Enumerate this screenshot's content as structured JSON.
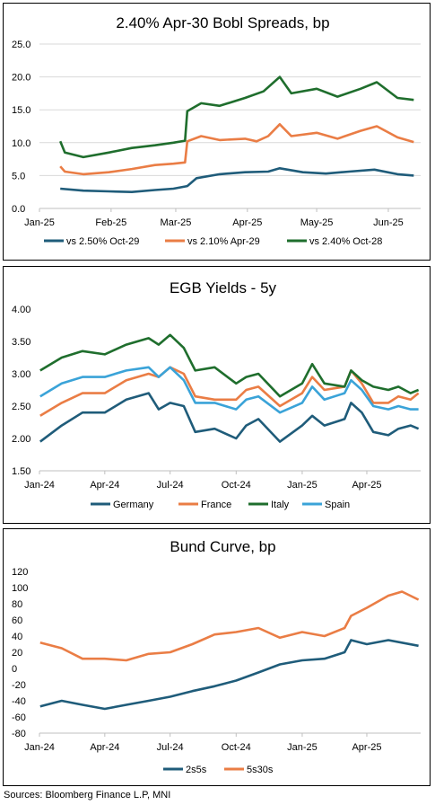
{
  "source_note": "Sources: Bloomberg Finance L.P, MNI",
  "colors": {
    "navy": "#1f5c7a",
    "orange": "#ea7d45",
    "green": "#1f6e2d",
    "light_blue": "#3aa3d8",
    "grid": "#d9d9d9",
    "axis": "#bfbfbf"
  },
  "chart_data": [
    {
      "type": "line",
      "title": "2.40% Apr-30 Bobl Spreads, bp",
      "xlabel": "",
      "ylabel": "",
      "ylim": [
        0,
        25
      ],
      "yticks": [
        "0.0",
        "5.0",
        "10.0",
        "15.0",
        "20.0",
        "25.0"
      ],
      "xlim": [
        "2025-01-01",
        "2025-06-15"
      ],
      "xticks": [
        {
          "date": "2025-01-01",
          "label": "Jan-25"
        },
        {
          "date": "2025-02-01",
          "label": "Feb-25"
        },
        {
          "date": "2025-03-01",
          "label": "Mar-25"
        },
        {
          "date": "2025-04-01",
          "label": "Apr-25"
        },
        {
          "date": "2025-05-01",
          "label": "May-25"
        },
        {
          "date": "2025-06-01",
          "label": "Jun-25"
        }
      ],
      "grid": true,
      "legend_position": "bottom",
      "series": [
        {
          "name": "vs 2.50% Oct-29",
          "color": "#1f5c7a",
          "points": [
            [
              "2025-01-10",
              3.0
            ],
            [
              "2025-01-20",
              2.7
            ],
            [
              "2025-01-31",
              2.6
            ],
            [
              "2025-02-10",
              2.5
            ],
            [
              "2025-02-20",
              2.8
            ],
            [
              "2025-02-28",
              3.0
            ],
            [
              "2025-03-06",
              3.4
            ],
            [
              "2025-03-10",
              4.6
            ],
            [
              "2025-03-20",
              5.2
            ],
            [
              "2025-03-31",
              5.5
            ],
            [
              "2025-04-10",
              5.6
            ],
            [
              "2025-04-15",
              6.1
            ],
            [
              "2025-04-25",
              5.5
            ],
            [
              "2025-05-05",
              5.3
            ],
            [
              "2025-05-15",
              5.6
            ],
            [
              "2025-05-26",
              5.9
            ],
            [
              "2025-06-05",
              5.2
            ],
            [
              "2025-06-12",
              5.0
            ]
          ]
        },
        {
          "name": "vs 2.10% Apr-29",
          "color": "#ea7d45",
          "points": [
            [
              "2025-01-10",
              6.4
            ],
            [
              "2025-01-12",
              5.6
            ],
            [
              "2025-01-20",
              5.2
            ],
            [
              "2025-01-31",
              5.5
            ],
            [
              "2025-02-10",
              6.0
            ],
            [
              "2025-02-20",
              6.6
            ],
            [
              "2025-02-28",
              6.8
            ],
            [
              "2025-03-05",
              7.0
            ],
            [
              "2025-03-06",
              10.2
            ],
            [
              "2025-03-12",
              11.0
            ],
            [
              "2025-03-20",
              10.4
            ],
            [
              "2025-03-31",
              10.6
            ],
            [
              "2025-04-05",
              10.2
            ],
            [
              "2025-04-10",
              11.0
            ],
            [
              "2025-04-15",
              12.8
            ],
            [
              "2025-04-20",
              11.0
            ],
            [
              "2025-05-01",
              11.5
            ],
            [
              "2025-05-10",
              10.6
            ],
            [
              "2025-05-20",
              11.8
            ],
            [
              "2025-05-27",
              12.5
            ],
            [
              "2025-06-05",
              10.8
            ],
            [
              "2025-06-12",
              10.1
            ]
          ]
        },
        {
          "name": "vs 2.40% Oct-28",
          "color": "#1f6e2d",
          "points": [
            [
              "2025-01-10",
              10.2
            ],
            [
              "2025-01-12",
              8.5
            ],
            [
              "2025-01-20",
              7.8
            ],
            [
              "2025-01-31",
              8.5
            ],
            [
              "2025-02-10",
              9.2
            ],
            [
              "2025-02-20",
              9.6
            ],
            [
              "2025-02-28",
              10.0
            ],
            [
              "2025-03-05",
              10.3
            ],
            [
              "2025-03-06",
              14.8
            ],
            [
              "2025-03-12",
              16.0
            ],
            [
              "2025-03-20",
              15.6
            ],
            [
              "2025-03-31",
              16.8
            ],
            [
              "2025-04-08",
              17.8
            ],
            [
              "2025-04-15",
              20.0
            ],
            [
              "2025-04-20",
              17.5
            ],
            [
              "2025-05-01",
              18.2
            ],
            [
              "2025-05-10",
              17.0
            ],
            [
              "2025-05-20",
              18.2
            ],
            [
              "2025-05-27",
              19.2
            ],
            [
              "2025-06-05",
              16.8
            ],
            [
              "2025-06-12",
              16.5
            ]
          ]
        }
      ]
    },
    {
      "type": "line",
      "title": "EGB Yields - 5y",
      "xlabel": "",
      "ylabel": "",
      "ylim": [
        1.5,
        4.0
      ],
      "yticks": [
        "1.50",
        "2.00",
        "2.50",
        "3.00",
        "3.50",
        "4.00"
      ],
      "xlim": [
        "2024-01-01",
        "2025-06-15"
      ],
      "xticks": [
        {
          "date": "2024-01-01",
          "label": "Jan-24"
        },
        {
          "date": "2024-04-01",
          "label": "Apr-24"
        },
        {
          "date": "2024-07-01",
          "label": "Jul-24"
        },
        {
          "date": "2024-10-01",
          "label": "Oct-24"
        },
        {
          "date": "2025-01-01",
          "label": "Jan-25"
        },
        {
          "date": "2025-04-01",
          "label": "Apr-25"
        }
      ],
      "grid": false,
      "legend_position": "bottom",
      "series": [
        {
          "name": "Germany",
          "color": "#1f5c7a",
          "points": [
            [
              "2024-01-02",
              1.95
            ],
            [
              "2024-02-01",
              2.2
            ],
            [
              "2024-03-01",
              2.4
            ],
            [
              "2024-04-01",
              2.4
            ],
            [
              "2024-05-01",
              2.6
            ],
            [
              "2024-06-01",
              2.7
            ],
            [
              "2024-06-15",
              2.45
            ],
            [
              "2024-07-01",
              2.55
            ],
            [
              "2024-07-20",
              2.5
            ],
            [
              "2024-08-05",
              2.1
            ],
            [
              "2024-09-01",
              2.15
            ],
            [
              "2024-10-01",
              2.0
            ],
            [
              "2024-10-15",
              2.2
            ],
            [
              "2024-11-01",
              2.3
            ],
            [
              "2024-12-01",
              1.95
            ],
            [
              "2025-01-01",
              2.2
            ],
            [
              "2025-01-15",
              2.35
            ],
            [
              "2025-02-01",
              2.2
            ],
            [
              "2025-03-01",
              2.3
            ],
            [
              "2025-03-10",
              2.55
            ],
            [
              "2025-03-25",
              2.4
            ],
            [
              "2025-04-10",
              2.1
            ],
            [
              "2025-05-01",
              2.05
            ],
            [
              "2025-05-15",
              2.15
            ],
            [
              "2025-06-01",
              2.2
            ],
            [
              "2025-06-12",
              2.15
            ]
          ]
        },
        {
          "name": "France",
          "color": "#ea7d45",
          "points": [
            [
              "2024-01-02",
              2.35
            ],
            [
              "2024-02-01",
              2.55
            ],
            [
              "2024-03-01",
              2.7
            ],
            [
              "2024-04-01",
              2.7
            ],
            [
              "2024-05-01",
              2.9
            ],
            [
              "2024-06-01",
              3.0
            ],
            [
              "2024-06-15",
              2.95
            ],
            [
              "2024-07-01",
              3.1
            ],
            [
              "2024-07-20",
              3.0
            ],
            [
              "2024-08-05",
              2.65
            ],
            [
              "2024-09-01",
              2.6
            ],
            [
              "2024-10-01",
              2.6
            ],
            [
              "2024-10-15",
              2.75
            ],
            [
              "2024-11-01",
              2.8
            ],
            [
              "2024-12-01",
              2.5
            ],
            [
              "2025-01-01",
              2.7
            ],
            [
              "2025-01-15",
              2.95
            ],
            [
              "2025-02-01",
              2.75
            ],
            [
              "2025-03-01",
              2.8
            ],
            [
              "2025-03-10",
              3.05
            ],
            [
              "2025-03-25",
              2.85
            ],
            [
              "2025-04-10",
              2.55
            ],
            [
              "2025-05-01",
              2.55
            ],
            [
              "2025-05-15",
              2.65
            ],
            [
              "2025-06-01",
              2.6
            ],
            [
              "2025-06-12",
              2.7
            ]
          ]
        },
        {
          "name": "Italy",
          "color": "#1f6e2d",
          "points": [
            [
              "2024-01-02",
              3.05
            ],
            [
              "2024-02-01",
              3.25
            ],
            [
              "2024-03-01",
              3.35
            ],
            [
              "2024-04-01",
              3.3
            ],
            [
              "2024-05-01",
              3.45
            ],
            [
              "2024-06-01",
              3.55
            ],
            [
              "2024-06-15",
              3.45
            ],
            [
              "2024-07-01",
              3.6
            ],
            [
              "2024-07-20",
              3.4
            ],
            [
              "2024-08-05",
              3.05
            ],
            [
              "2024-09-01",
              3.1
            ],
            [
              "2024-10-01",
              2.85
            ],
            [
              "2024-10-15",
              2.95
            ],
            [
              "2024-11-01",
              3.0
            ],
            [
              "2024-12-01",
              2.65
            ],
            [
              "2025-01-01",
              2.85
            ],
            [
              "2025-01-15",
              3.15
            ],
            [
              "2025-02-01",
              2.85
            ],
            [
              "2025-03-01",
              2.8
            ],
            [
              "2025-03-10",
              3.05
            ],
            [
              "2025-03-25",
              2.9
            ],
            [
              "2025-04-10",
              2.8
            ],
            [
              "2025-05-01",
              2.75
            ],
            [
              "2025-05-15",
              2.8
            ],
            [
              "2025-06-01",
              2.7
            ],
            [
              "2025-06-12",
              2.75
            ]
          ]
        },
        {
          "name": "Spain",
          "color": "#3aa3d8",
          "points": [
            [
              "2024-01-02",
              2.65
            ],
            [
              "2024-02-01",
              2.85
            ],
            [
              "2024-03-01",
              2.95
            ],
            [
              "2024-04-01",
              2.95
            ],
            [
              "2024-05-01",
              3.05
            ],
            [
              "2024-06-01",
              3.1
            ],
            [
              "2024-06-15",
              2.95
            ],
            [
              "2024-07-01",
              3.1
            ],
            [
              "2024-07-20",
              2.9
            ],
            [
              "2024-08-05",
              2.55
            ],
            [
              "2024-09-01",
              2.55
            ],
            [
              "2024-10-01",
              2.45
            ],
            [
              "2024-10-15",
              2.6
            ],
            [
              "2024-11-01",
              2.65
            ],
            [
              "2024-12-01",
              2.4
            ],
            [
              "2025-01-01",
              2.55
            ],
            [
              "2025-01-15",
              2.8
            ],
            [
              "2025-02-01",
              2.6
            ],
            [
              "2025-03-01",
              2.7
            ],
            [
              "2025-03-10",
              2.9
            ],
            [
              "2025-03-25",
              2.75
            ],
            [
              "2025-04-10",
              2.5
            ],
            [
              "2025-05-01",
              2.45
            ],
            [
              "2025-05-15",
              2.5
            ],
            [
              "2025-06-01",
              2.45
            ],
            [
              "2025-06-12",
              2.45
            ]
          ]
        }
      ]
    },
    {
      "type": "line",
      "title": "Bund Curve, bp",
      "xlabel": "",
      "ylabel": "",
      "ylim": [
        -80,
        120
      ],
      "yticks": [
        "-80",
        "-60",
        "-40",
        "-20",
        "0",
        "20",
        "40",
        "60",
        "80",
        "100",
        "120"
      ],
      "xlim": [
        "2024-01-01",
        "2025-06-15"
      ],
      "xticks": [
        {
          "date": "2024-01-01",
          "label": "Jan-24"
        },
        {
          "date": "2024-04-01",
          "label": "Apr-24"
        },
        {
          "date": "2024-07-01",
          "label": "Jul-24"
        },
        {
          "date": "2024-10-01",
          "label": "Oct-24"
        },
        {
          "date": "2025-01-01",
          "label": "Jan-25"
        },
        {
          "date": "2025-04-01",
          "label": "Apr-25"
        }
      ],
      "grid": false,
      "legend_position": "bottom",
      "series": [
        {
          "name": "2s5s",
          "color": "#1f5c7a",
          "points": [
            [
              "2024-01-02",
              -47
            ],
            [
              "2024-02-01",
              -40
            ],
            [
              "2024-03-01",
              -45
            ],
            [
              "2024-04-01",
              -50
            ],
            [
              "2024-05-01",
              -45
            ],
            [
              "2024-06-01",
              -40
            ],
            [
              "2024-07-01",
              -35
            ],
            [
              "2024-08-01",
              -28
            ],
            [
              "2024-09-01",
              -22
            ],
            [
              "2024-10-01",
              -15
            ],
            [
              "2024-11-01",
              -5
            ],
            [
              "2024-12-01",
              5
            ],
            [
              "2025-01-01",
              10
            ],
            [
              "2025-02-01",
              12
            ],
            [
              "2025-03-01",
              20
            ],
            [
              "2025-03-10",
              35
            ],
            [
              "2025-04-01",
              30
            ],
            [
              "2025-05-01",
              35
            ],
            [
              "2025-06-12",
              28
            ]
          ]
        },
        {
          "name": "5s30s",
          "color": "#ea7d45",
          "points": [
            [
              "2024-01-02",
              32
            ],
            [
              "2024-02-01",
              25
            ],
            [
              "2024-03-01",
              12
            ],
            [
              "2024-04-01",
              12
            ],
            [
              "2024-05-01",
              10
            ],
            [
              "2024-06-01",
              18
            ],
            [
              "2024-07-01",
              20
            ],
            [
              "2024-08-01",
              30
            ],
            [
              "2024-09-01",
              42
            ],
            [
              "2024-10-01",
              45
            ],
            [
              "2024-11-01",
              50
            ],
            [
              "2024-12-01",
              38
            ],
            [
              "2025-01-01",
              45
            ],
            [
              "2025-02-01",
              40
            ],
            [
              "2025-03-01",
              50
            ],
            [
              "2025-03-10",
              65
            ],
            [
              "2025-04-01",
              75
            ],
            [
              "2025-05-01",
              90
            ],
            [
              "2025-05-20",
              95
            ],
            [
              "2025-06-12",
              85
            ]
          ]
        }
      ]
    }
  ]
}
